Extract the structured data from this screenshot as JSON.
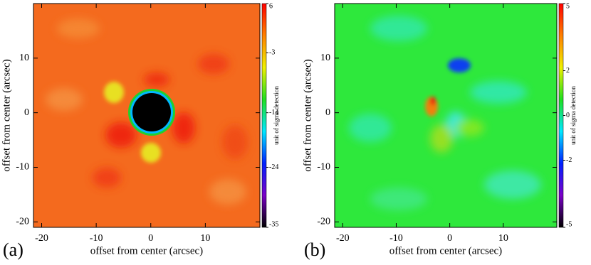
{
  "chart_data": [
    {
      "type": "heatmap",
      "panel_label": "(a)",
      "xlabel": "offset from center (arcsec)",
      "ylabel": "offset from center (arcsec)",
      "colorbar_label": "unit of sigma detection",
      "xlim": [
        -21.5,
        20
      ],
      "ylim": [
        -21,
        20
      ],
      "xticks": [
        -20,
        -10,
        0,
        10
      ],
      "yticks": [
        -20,
        -10,
        0,
        10
      ],
      "clim": [
        -35,
        6
      ],
      "cticks": [
        6,
        -3,
        -14,
        -24,
        -35
      ],
      "colormap": [
        "#000000",
        "#7a00c8",
        "#0020ff",
        "#00e8ff",
        "#20e020",
        "#f0f000",
        "#ff8000",
        "#ff0000"
      ]
    },
    {
      "type": "heatmap",
      "panel_label": "(b)",
      "xlabel": "offset from center (arcsec)",
      "ylabel": "offset from center (arcsec)",
      "colorbar_label": "unit of sigma detection",
      "xlim": [
        -21.5,
        20
      ],
      "ylim": [
        -21,
        20
      ],
      "xticks": [
        -20,
        -10,
        0,
        10
      ],
      "yticks": [
        -20,
        -10,
        0,
        10
      ],
      "clim": [
        -5,
        5
      ],
      "cticks": [
        5,
        2,
        0,
        -2,
        -5
      ],
      "colormap": [
        "#000000",
        "#7a00c8",
        "#0020ff",
        "#00e8ff",
        "#20e020",
        "#f0f000",
        "#ff8000",
        "#ff0000"
      ]
    }
  ]
}
